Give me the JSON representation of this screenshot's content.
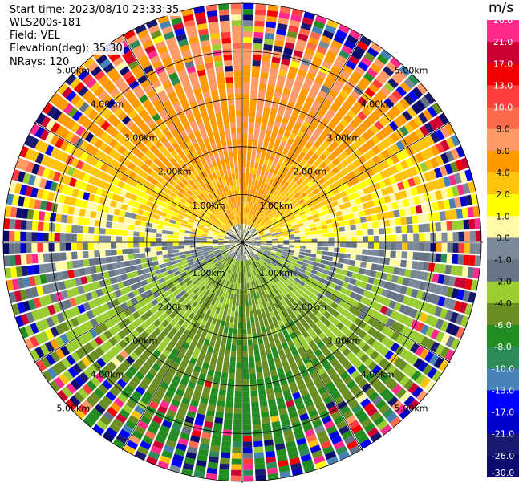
{
  "header": {
    "start_time": "Start time: 2023/08/10 23:33:35",
    "instrument": "WLS200s-181",
    "field": "Field: VEL",
    "elevation": "Elevation(deg): 35.30",
    "nrays": "NRays: 120"
  },
  "colorbar": {
    "unit": "m/s",
    "levels": [
      "26.0",
      "21.0",
      "17.0",
      "13.0",
      "10.0",
      "8.0",
      "6.0",
      "4.0",
      "2.0",
      "1.0",
      "0.0",
      "-1.0",
      "-2.0",
      "-4.0",
      "-6.0",
      "-8.0",
      "-10.0",
      "-13.0",
      "-17.0",
      "-21.0",
      "-26.0",
      "-30.0"
    ],
    "colors": [
      "#ff2a8c",
      "#cc0033",
      "#f00000",
      "#ff3d3d",
      "#ff6a4d",
      "#ff9966",
      "#ff9a00",
      "#ffc30d",
      "#ffff00",
      "#fff9a8",
      "#7a8898",
      "#677485",
      "#9acd32",
      "#6b8e23",
      "#228b22",
      "#2e8b57",
      "#4682b4",
      "#0000ff",
      "#0000cd",
      "#191970",
      "#0b0b6e"
    ]
  },
  "chart_data": {
    "type": "heatmap",
    "title": "",
    "field": "VEL",
    "units": "m/s",
    "nrays": 120,
    "elevation_deg": 35.3,
    "range_rings_km": [
      1.0,
      2.0,
      3.0,
      4.0,
      5.0
    ],
    "range_ring_labels": [
      "1.00km",
      "2.00km",
      "3.00km",
      "4.00km",
      "5.00km"
    ],
    "grid_lines_deg": [
      0,
      30,
      60,
      90,
      120,
      150,
      180,
      210,
      240,
      270,
      300,
      330
    ],
    "field_summary": {
      "north_sector": "positive 4 to 10 m/s (yellow to orange/red)",
      "south_sector": "negative -2 to -8 m/s (green)",
      "outer_range": "noisy, all colors"
    }
  }
}
